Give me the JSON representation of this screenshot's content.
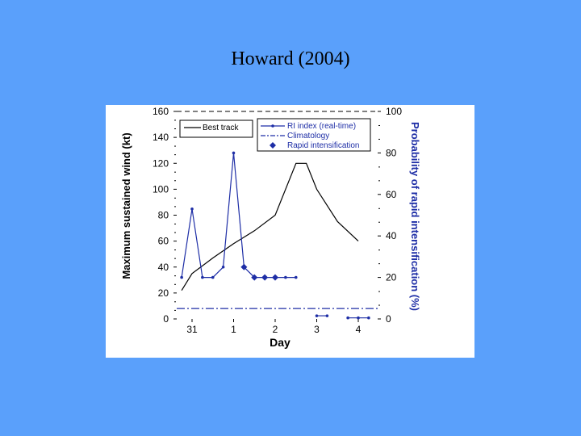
{
  "slide": {
    "title": "Howard (2004)"
  },
  "colors": {
    "background": "#5aa0fb",
    "panel": "#ffffff",
    "best_track": "#000000",
    "ri": "#1e2ea6"
  },
  "chart_data": {
    "type": "line",
    "xlabel": "Day",
    "ylabel_left": "Maximum sustained wind (kt)",
    "ylabel_right": "Probability of rapid intensification (%)",
    "x_ticks": [
      "31",
      "1",
      "2",
      "3",
      "4"
    ],
    "y_left_ticks": [
      "0",
      "20",
      "40",
      "60",
      "80",
      "100",
      "120",
      "140",
      "160"
    ],
    "y_right_ticks": [
      "0",
      "20",
      "40",
      "60",
      "80",
      "100"
    ],
    "ylim_left": [
      0,
      160
    ],
    "ylim_right": [
      0,
      100
    ],
    "legend": {
      "best_track": "Best track",
      "ri_index": "RI index (real-time)",
      "climatology": "Climatology",
      "rapid_intensification": "Rapid intensification"
    },
    "series": [
      {
        "name": "Best track",
        "axis": "left",
        "points": [
          [
            -0.25,
            22
          ],
          [
            0.0,
            35
          ],
          [
            0.5,
            47
          ],
          [
            1.0,
            58
          ],
          [
            1.5,
            68
          ],
          [
            2.0,
            80
          ],
          [
            2.5,
            120
          ],
          [
            2.75,
            120
          ],
          [
            3.0,
            100
          ],
          [
            3.5,
            75
          ],
          [
            4.0,
            60
          ]
        ]
      },
      {
        "name": "RI index (real-time)",
        "axis": "right",
        "points": [
          [
            -0.25,
            20
          ],
          [
            0.0,
            53
          ],
          [
            0.25,
            20
          ],
          [
            0.5,
            20
          ],
          [
            0.75,
            25
          ],
          [
            1.0,
            80
          ],
          [
            1.25,
            25
          ],
          [
            1.5,
            20
          ],
          [
            1.75,
            20
          ],
          [
            2.0,
            20
          ],
          [
            2.25,
            20
          ],
          [
            2.5,
            20
          ]
        ],
        "points_b": [
          [
            3.0,
            1.5
          ],
          [
            3.25,
            1.5
          ]
        ],
        "points_c": [
          [
            3.75,
            0.5
          ],
          [
            4.0,
            0.5
          ],
          [
            4.25,
            0.5
          ]
        ]
      },
      {
        "name": "Climatology",
        "axis": "right",
        "value": 5
      },
      {
        "name": "Rapid intensification",
        "axis": "right",
        "points": [
          [
            1.25,
            25
          ],
          [
            1.5,
            20
          ],
          [
            1.75,
            20
          ],
          [
            2.0,
            20
          ]
        ]
      }
    ]
  }
}
